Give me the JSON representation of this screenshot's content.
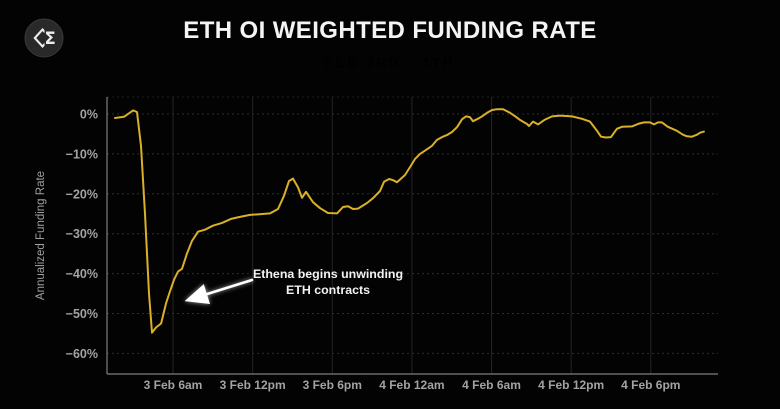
{
  "logo": {
    "glyph": "Σ"
  },
  "header": {
    "title": "ETH OI WEIGHTED FUNDING RATE",
    "subtitle": "FEB 3RD - 4TH",
    "subtitle_color": "#7e9fd4"
  },
  "annotation": {
    "text": "Ethena begins unwinding\nETH contracts"
  },
  "chart_data": {
    "type": "line",
    "title": "ETH OI WEIGHTED FUNDING RATE",
    "subtitle": "FEB 3RD - 4TH",
    "ylabel": "Annualized Funding Rate",
    "xlabel": "",
    "ylim": [
      -64,
      4.5
    ],
    "grid": true,
    "legend": false,
    "line_color": "#d9b027",
    "yticks": {
      "values": [
        0,
        -10,
        -20,
        -30,
        -40,
        -50,
        -60
      ],
      "labels": [
        "0%",
        "−10%",
        "−20%",
        "−30%",
        "−40%",
        "−50%",
        "−60%"
      ]
    },
    "xticks": {
      "hours": [
        6,
        12,
        18,
        24,
        30,
        36,
        42
      ],
      "labels": [
        "3 Feb 6am",
        "3 Feb 12pm",
        "3 Feb 6pm",
        "4 Feb 12am",
        "4 Feb 6am",
        "4 Feb 12pm",
        "4 Feb 6pm"
      ]
    },
    "series": [
      {
        "name": "ETH OI weighted funding rate (annualized %)",
        "x_unit": "hours since 3 Feb 12am",
        "points": [
          [
            1.63,
            -1.0
          ],
          [
            2.31,
            -0.7
          ],
          [
            2.99,
            0.9
          ],
          [
            3.29,
            0.5
          ],
          [
            3.59,
            -8.0
          ],
          [
            3.89,
            -25.0
          ],
          [
            4.19,
            -45.0
          ],
          [
            4.42,
            -54.8
          ],
          [
            4.72,
            -53.5
          ],
          [
            5.1,
            -52.5
          ],
          [
            5.47,
            -47.5
          ],
          [
            5.77,
            -44.5
          ],
          [
            6.08,
            -41.5
          ],
          [
            6.38,
            -39.5
          ],
          [
            6.68,
            -38.8
          ],
          [
            7.05,
            -35.0
          ],
          [
            7.43,
            -31.8
          ],
          [
            7.88,
            -29.5
          ],
          [
            8.41,
            -29.0
          ],
          [
            9.01,
            -28.0
          ],
          [
            9.69,
            -27.3
          ],
          [
            10.37,
            -26.3
          ],
          [
            11.05,
            -25.8
          ],
          [
            11.8,
            -25.3
          ],
          [
            12.63,
            -25.1
          ],
          [
            13.31,
            -24.9
          ],
          [
            13.91,
            -23.8
          ],
          [
            14.36,
            -20.5
          ],
          [
            14.74,
            -16.8
          ],
          [
            15.04,
            -16.2
          ],
          [
            15.42,
            -18.4
          ],
          [
            15.72,
            -21.0
          ],
          [
            16.02,
            -19.5
          ],
          [
            16.55,
            -22.1
          ],
          [
            17.08,
            -23.6
          ],
          [
            17.68,
            -24.8
          ],
          [
            18.36,
            -24.9
          ],
          [
            18.81,
            -23.3
          ],
          [
            19.19,
            -23.1
          ],
          [
            19.56,
            -23.8
          ],
          [
            19.94,
            -23.7
          ],
          [
            20.62,
            -22.3
          ],
          [
            21.07,
            -21.1
          ],
          [
            21.6,
            -19.3
          ],
          [
            21.9,
            -17.0
          ],
          [
            22.28,
            -16.3
          ],
          [
            22.58,
            -16.6
          ],
          [
            22.88,
            -17.1
          ],
          [
            23.48,
            -15.3
          ],
          [
            23.86,
            -13.3
          ],
          [
            24.23,
            -11.3
          ],
          [
            24.61,
            -10.0
          ],
          [
            25.06,
            -9.0
          ],
          [
            25.51,
            -8.0
          ],
          [
            25.89,
            -6.5
          ],
          [
            26.27,
            -5.8
          ],
          [
            26.64,
            -5.3
          ],
          [
            27.02,
            -4.5
          ],
          [
            27.4,
            -3.3
          ],
          [
            27.78,
            -1.3
          ],
          [
            28.08,
            -0.6
          ],
          [
            28.38,
            -0.8
          ],
          [
            28.6,
            -1.8
          ],
          [
            28.91,
            -1.3
          ],
          [
            29.28,
            -0.6
          ],
          [
            29.66,
            0.3
          ],
          [
            30.04,
            1.0
          ],
          [
            30.41,
            1.2
          ],
          [
            30.87,
            1.2
          ],
          [
            31.39,
            0.3
          ],
          [
            31.84,
            -0.7
          ],
          [
            32.15,
            -1.5
          ],
          [
            32.67,
            -2.5
          ],
          [
            32.82,
            -3.0
          ],
          [
            33.13,
            -1.9
          ],
          [
            33.5,
            -2.6
          ],
          [
            34.03,
            -1.4
          ],
          [
            34.56,
            -0.6
          ],
          [
            35.16,
            -0.4
          ],
          [
            36.06,
            -0.6
          ],
          [
            36.82,
            -1.2
          ],
          [
            37.42,
            -1.9
          ],
          [
            37.95,
            -4.2
          ],
          [
            38.25,
            -5.7
          ],
          [
            38.62,
            -5.9
          ],
          [
            39.0,
            -5.8
          ],
          [
            39.45,
            -3.7
          ],
          [
            39.83,
            -3.2
          ],
          [
            40.58,
            -3.1
          ],
          [
            41.11,
            -2.4
          ],
          [
            41.49,
            -2.1
          ],
          [
            41.94,
            -2.1
          ],
          [
            42.24,
            -2.6
          ],
          [
            42.54,
            -2.1
          ],
          [
            42.84,
            -2.1
          ],
          [
            43.29,
            -3.2
          ],
          [
            43.97,
            -4.2
          ],
          [
            44.42,
            -5.2
          ],
          [
            44.72,
            -5.6
          ],
          [
            45.1,
            -5.7
          ],
          [
            45.48,
            -5.2
          ],
          [
            45.7,
            -4.7
          ],
          [
            46.0,
            -4.4
          ]
        ]
      }
    ],
    "annotation": {
      "text": "Ethena begins unwinding\nETH contracts",
      "arrow_from_hour": 11.95,
      "arrow_from_value": -41.6,
      "arrow_to_hour": 7.25,
      "arrow_to_value": -46.5
    }
  },
  "colors": {
    "background": "#030303",
    "axis": "#7f7f7f",
    "grid_h": "#2e2e2e",
    "grid_v": "#242424",
    "tick_label": "#a3a3a3",
    "line": "#d9b027"
  }
}
